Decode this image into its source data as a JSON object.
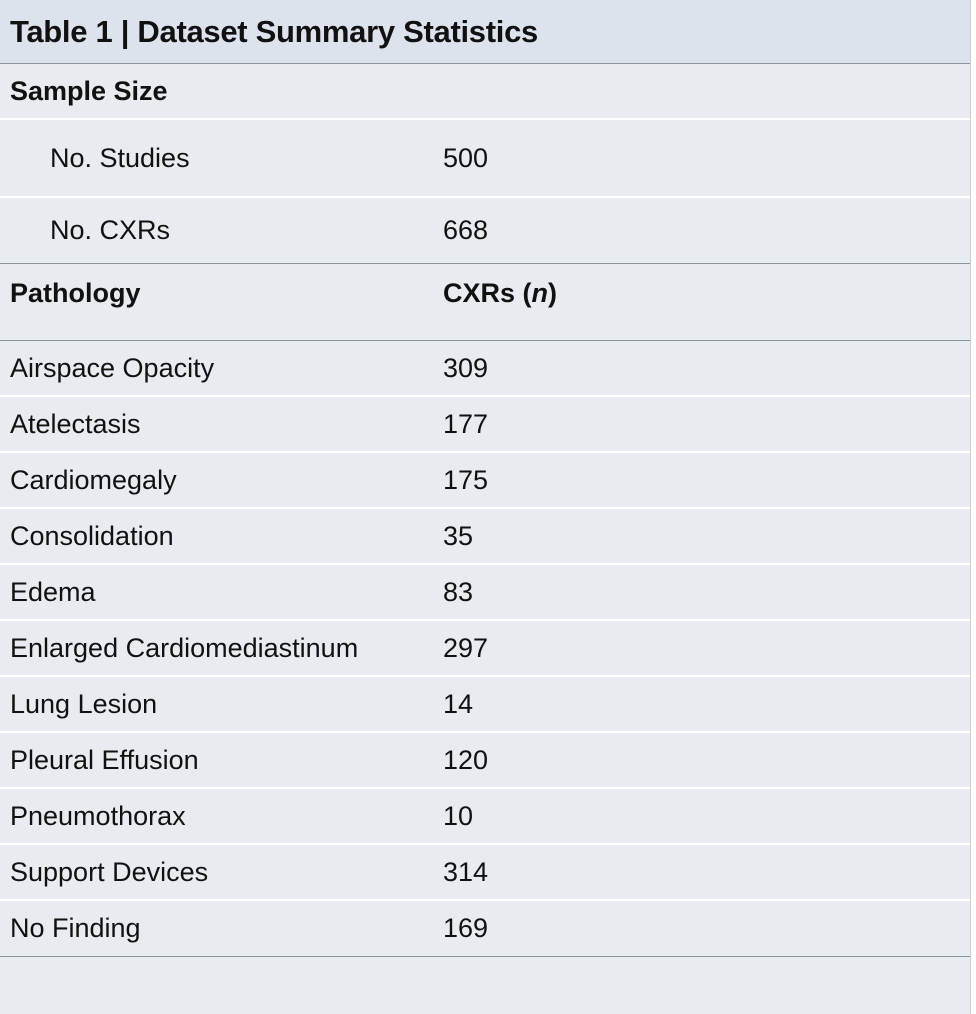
{
  "table": {
    "title": "Table 1 | Dataset Summary Statistics",
    "sample_section": {
      "heading": "Sample Size",
      "rows": [
        {
          "label": "No. Studies",
          "value": "500"
        },
        {
          "label": "No. CXRs",
          "value": "668"
        }
      ]
    },
    "pathology_section": {
      "col1_header": "Pathology",
      "col2_header_prefix": "CXRs (",
      "col2_header_italic": "n",
      "col2_header_suffix": ")",
      "rows": [
        {
          "label": "Airspace Opacity",
          "value": "309"
        },
        {
          "label": "Atelectasis",
          "value": "177"
        },
        {
          "label": "Cardiomegaly",
          "value": "175"
        },
        {
          "label": "Consolidation",
          "value": "35"
        },
        {
          "label": "Edema",
          "value": "83"
        },
        {
          "label": "Enlarged Cardiomediastinum",
          "value": "297"
        },
        {
          "label": "Lung Lesion",
          "value": "14"
        },
        {
          "label": "Pleural Effusion",
          "value": "120"
        },
        {
          "label": "Pneumothorax",
          "value": "10"
        },
        {
          "label": "Support Devices",
          "value": "314"
        },
        {
          "label": "No Finding",
          "value": "169"
        }
      ]
    }
  }
}
